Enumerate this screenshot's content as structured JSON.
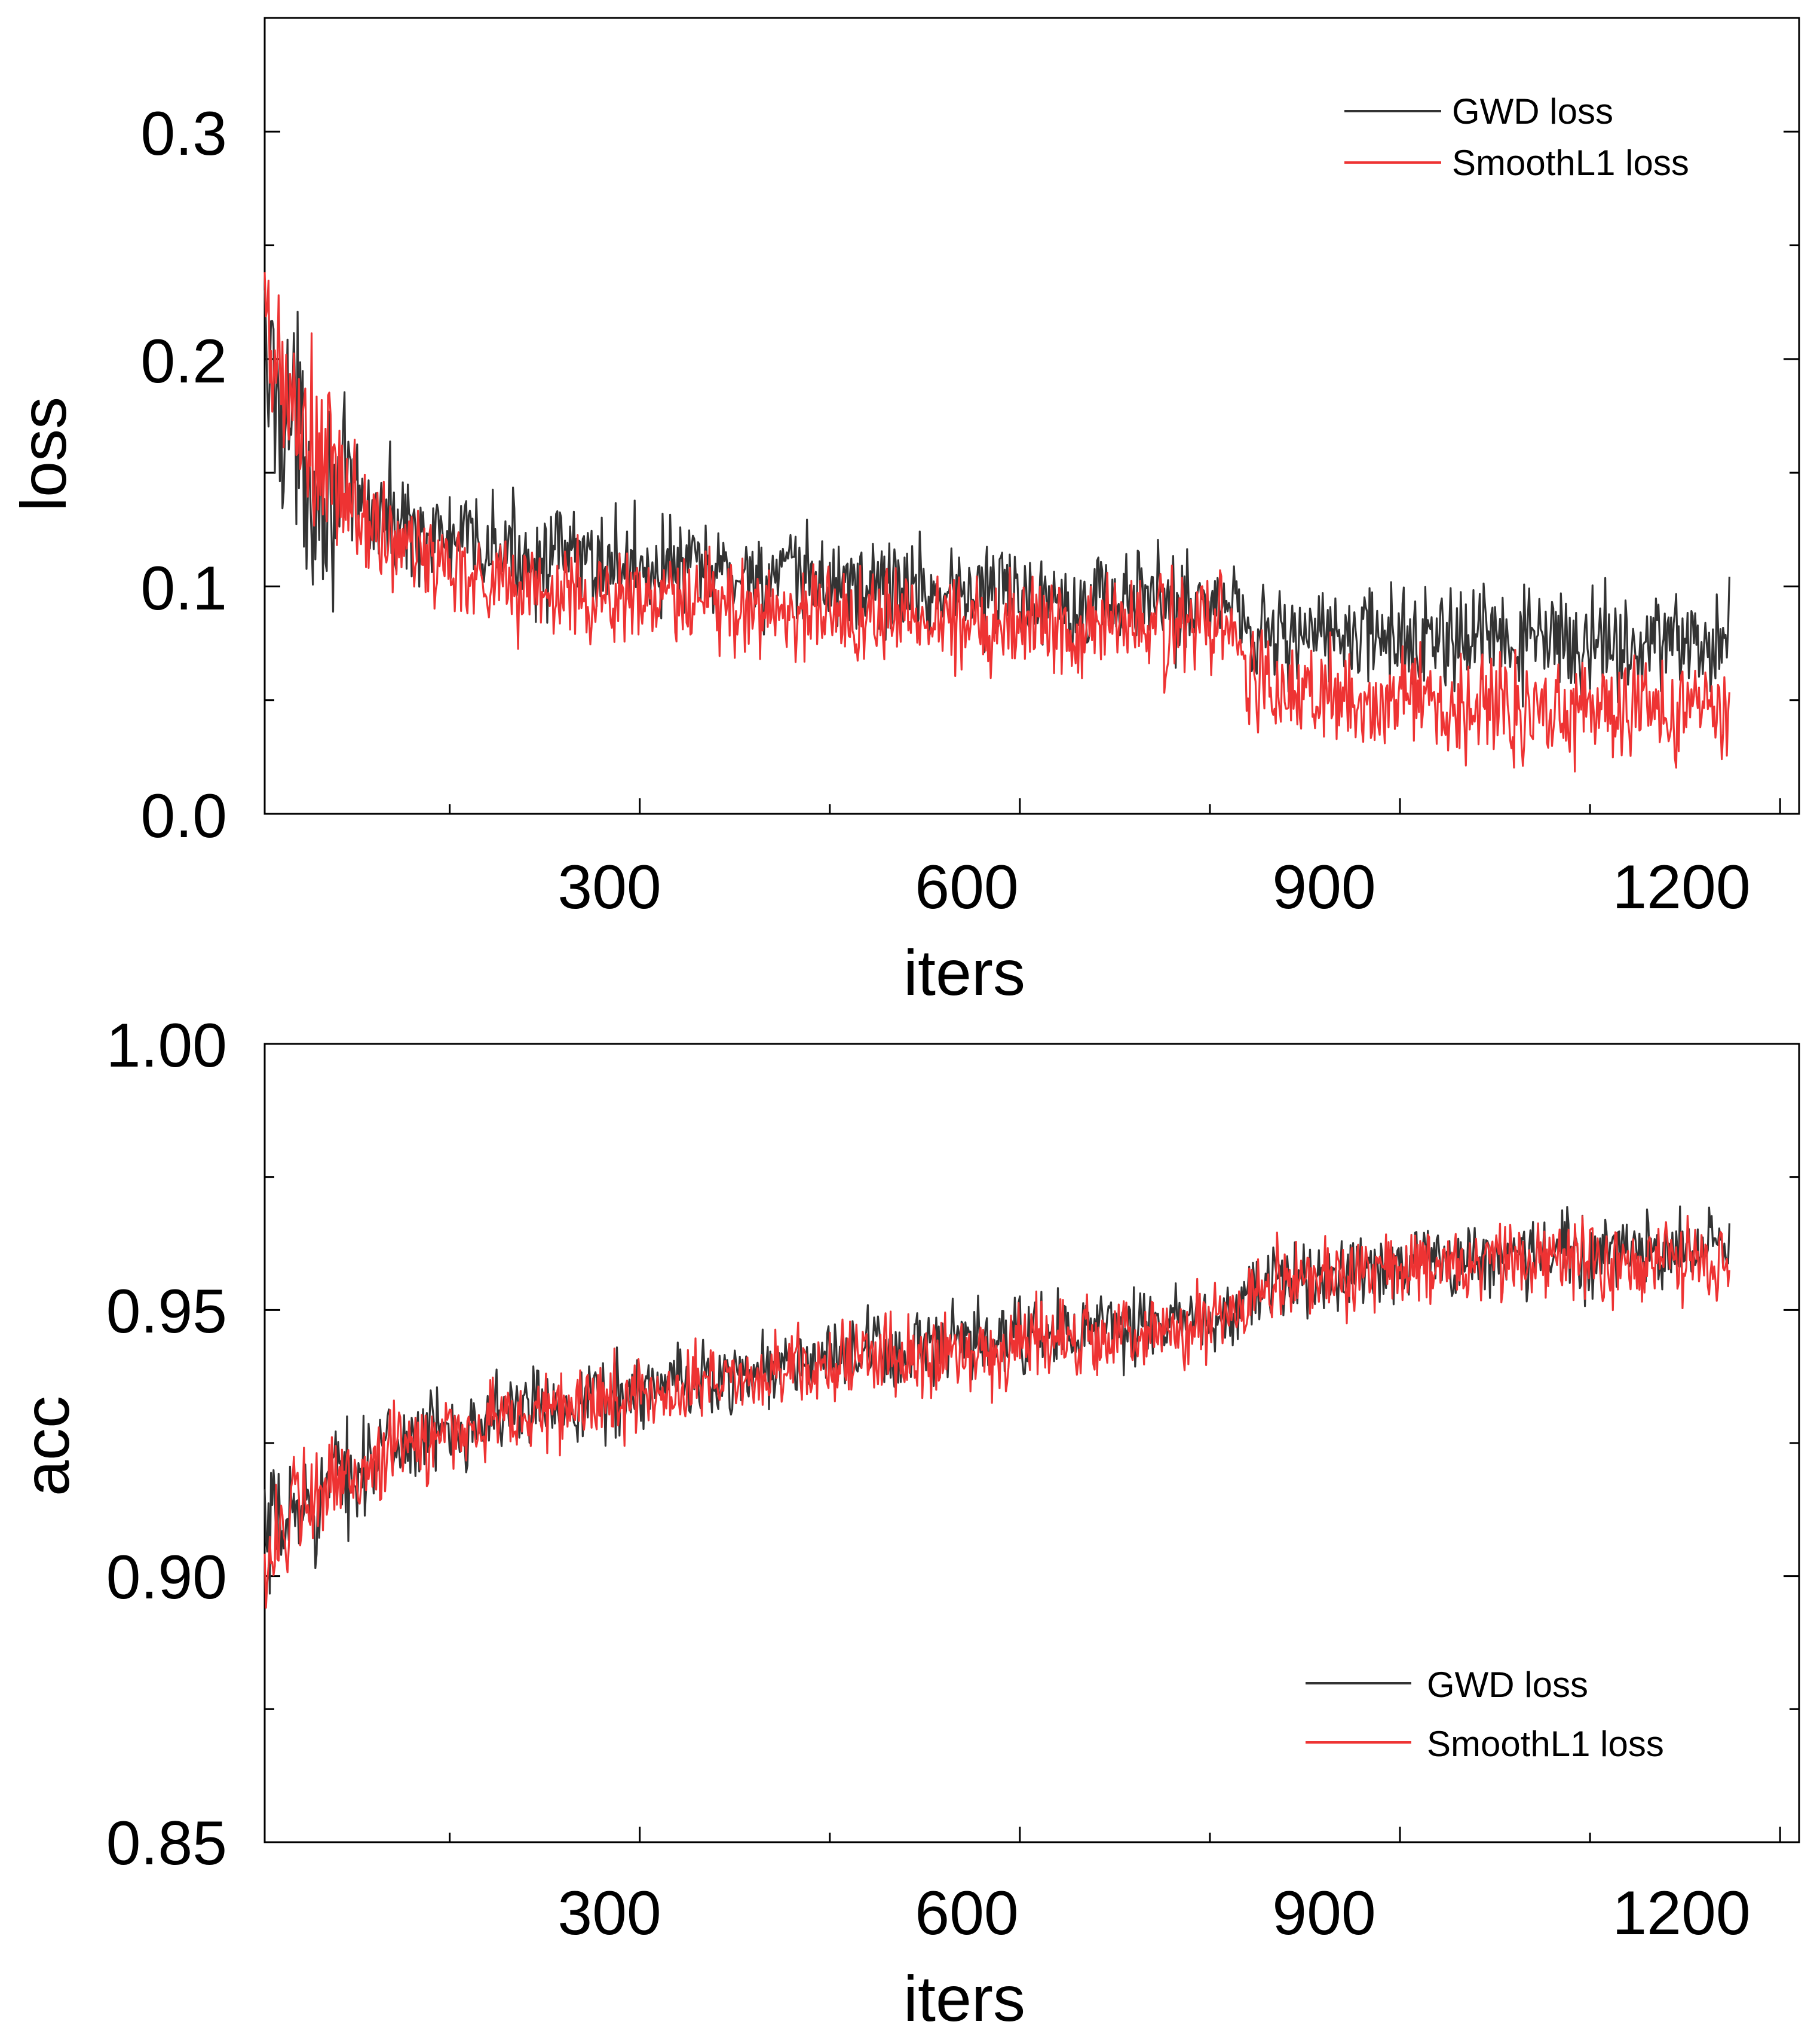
{
  "chart_data": [
    {
      "type": "line",
      "title": "",
      "xlabel": "iters",
      "ylabel": "loss",
      "xlim": [
        4,
        1215
      ],
      "ylim": [
        0.0,
        0.35
      ],
      "xticks": [
        300,
        600,
        900,
        1200
      ],
      "xtick_labels": [
        "300",
        "600",
        "900",
        "1200"
      ],
      "xminor_ticks": [
        150,
        450,
        750,
        1050
      ],
      "yticks": [
        0.0,
        0.1,
        0.2,
        0.3
      ],
      "ytick_labels": [
        "0.0",
        "0.1",
        "0.2",
        "0.3"
      ],
      "yminor_ticks": [
        0.05,
        0.15,
        0.25
      ],
      "legend_position": "top-right",
      "series": [
        {
          "name": "GWD loss",
          "color": "#333333",
          "x": [
            4,
            20,
            40,
            60,
            80,
            100,
            150,
            200,
            250,
            300,
            350,
            400,
            450,
            500,
            550,
            600,
            650,
            700,
            750,
            775,
            780,
            800,
            850,
            900,
            950,
            1000,
            1050,
            1100,
            1150,
            1160
          ],
          "y": [
            0.195,
            0.18,
            0.148,
            0.14,
            0.135,
            0.13,
            0.12,
            0.115,
            0.112,
            0.11,
            0.107,
            0.104,
            0.102,
            0.1,
            0.098,
            0.097,
            0.095,
            0.094,
            0.093,
            0.092,
            0.082,
            0.08,
            0.078,
            0.077,
            0.076,
            0.076,
            0.075,
            0.075,
            0.075,
            0.075
          ]
        },
        {
          "name": "SmoothL1 loss",
          "color": "#ee3333",
          "x": [
            4,
            20,
            40,
            60,
            80,
            100,
            150,
            200,
            250,
            300,
            350,
            400,
            450,
            500,
            550,
            600,
            650,
            700,
            750,
            775,
            780,
            800,
            850,
            900,
            950,
            1000,
            1050,
            1100,
            1150,
            1160
          ],
          "y": [
            0.2,
            0.185,
            0.158,
            0.145,
            0.13,
            0.12,
            0.11,
            0.1,
            0.096,
            0.094,
            0.092,
            0.09,
            0.088,
            0.087,
            0.086,
            0.085,
            0.084,
            0.083,
            0.082,
            0.081,
            0.06,
            0.055,
            0.05,
            0.05,
            0.048,
            0.048,
            0.046,
            0.046,
            0.045,
            0.045
          ]
        }
      ]
    },
    {
      "type": "line",
      "title": "",
      "xlabel": "iters",
      "ylabel": "acc",
      "xlim": [
        4,
        1215
      ],
      "ylim": [
        0.85,
        1.0
      ],
      "xticks": [
        300,
        600,
        900,
        1200
      ],
      "xtick_labels": [
        "300",
        "600",
        "900",
        "1200"
      ],
      "xminor_ticks": [
        150,
        450,
        750,
        1050
      ],
      "yticks": [
        0.85,
        0.9,
        0.95,
        1.0
      ],
      "ytick_labels": [
        "0.85",
        "0.90",
        "0.95",
        "1.00"
      ],
      "yminor_ticks": [
        0.875,
        0.925,
        0.975
      ],
      "legend_position": "bottom-right",
      "series": [
        {
          "name": "GWD loss",
          "color": "#333333",
          "x": [
            4,
            20,
            40,
            60,
            80,
            100,
            150,
            200,
            250,
            300,
            350,
            400,
            450,
            500,
            550,
            600,
            650,
            700,
            750,
            775,
            780,
            800,
            850,
            900,
            950,
            1000,
            1050,
            1100,
            1150,
            1160
          ],
          "y": [
            0.905,
            0.91,
            0.914,
            0.918,
            0.921,
            0.924,
            0.928,
            0.931,
            0.933,
            0.935,
            0.937,
            0.939,
            0.941,
            0.942,
            0.943,
            0.945,
            0.946,
            0.947,
            0.948,
            0.949,
            0.952,
            0.955,
            0.957,
            0.959,
            0.96,
            0.96,
            0.961,
            0.961,
            0.961,
            0.961
          ]
        },
        {
          "name": "SmoothL1 loss",
          "color": "#ee3333",
          "x": [
            4,
            20,
            40,
            60,
            80,
            100,
            150,
            200,
            250,
            300,
            350,
            400,
            450,
            500,
            550,
            600,
            650,
            700,
            750,
            775,
            780,
            800,
            850,
            900,
            950,
            1000,
            1050,
            1100,
            1150,
            1160
          ],
          "y": [
            0.905,
            0.909,
            0.913,
            0.917,
            0.92,
            0.923,
            0.927,
            0.93,
            0.932,
            0.934,
            0.936,
            0.938,
            0.94,
            0.941,
            0.942,
            0.944,
            0.945,
            0.946,
            0.947,
            0.948,
            0.951,
            0.954,
            0.956,
            0.958,
            0.958,
            0.959,
            0.959,
            0.959,
            0.959,
            0.959
          ]
        }
      ]
    }
  ]
}
